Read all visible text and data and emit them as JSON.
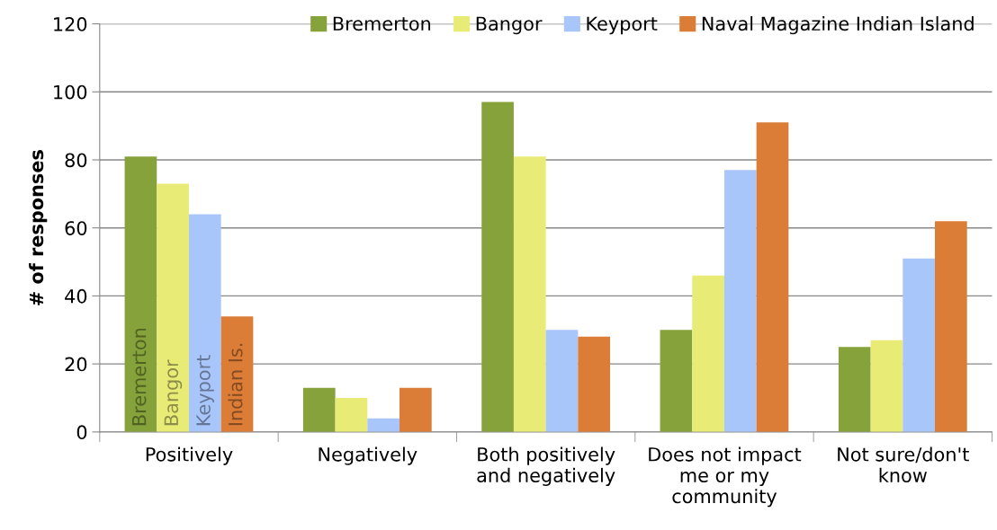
{
  "chart_data": {
    "type": "bar",
    "ylabel": "# of responses",
    "categories": [
      "Positively",
      "Negatively",
      "Both positively\nand negatively",
      "Does not impact\nme or my\ncommunity",
      "Not sure/don't\nknow"
    ],
    "series": [
      {
        "name": "Bremerton",
        "color": "#86a23b",
        "values": [
          81,
          13,
          97,
          30,
          25
        ]
      },
      {
        "name": "Bangor",
        "color": "#e8ec76",
        "values": [
          73,
          10,
          81,
          46,
          27
        ]
      },
      {
        "name": "Keyport",
        "color": "#a9c6fa",
        "values": [
          64,
          4,
          30,
          77,
          51
        ]
      },
      {
        "name": "Naval Magazine Indian Island",
        "color": "#dc7d37",
        "values": [
          34,
          13,
          28,
          91,
          62
        ]
      }
    ],
    "annotations": [
      "Bremerton",
      "Bangor",
      "Keyport",
      "Indian Is."
    ],
    "ylim": [
      0,
      120
    ],
    "yticks": [
      0,
      20,
      40,
      60,
      80,
      100,
      120
    ],
    "grid": "y",
    "legend": "top right"
  }
}
